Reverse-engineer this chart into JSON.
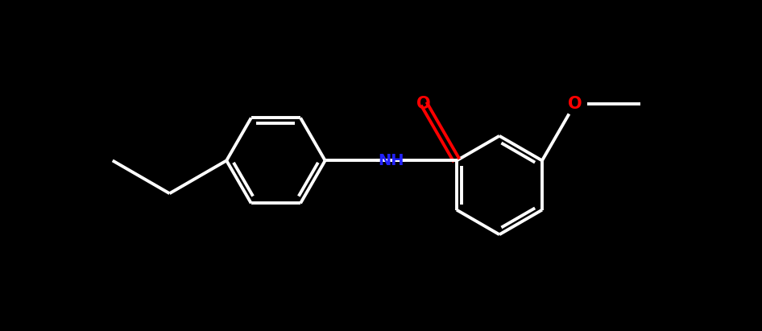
{
  "background_color": "#000000",
  "bond_color": "#ffffff",
  "N_color": "#2222ff",
  "O_color": "#ff0000",
  "bond_width": 2.8,
  "dbo": 0.06,
  "figsize": [
    9.46,
    4.11
  ],
  "dpi": 100,
  "xlim": [
    -5.5,
    5.5
  ],
  "ylim": [
    -2.5,
    2.5
  ]
}
